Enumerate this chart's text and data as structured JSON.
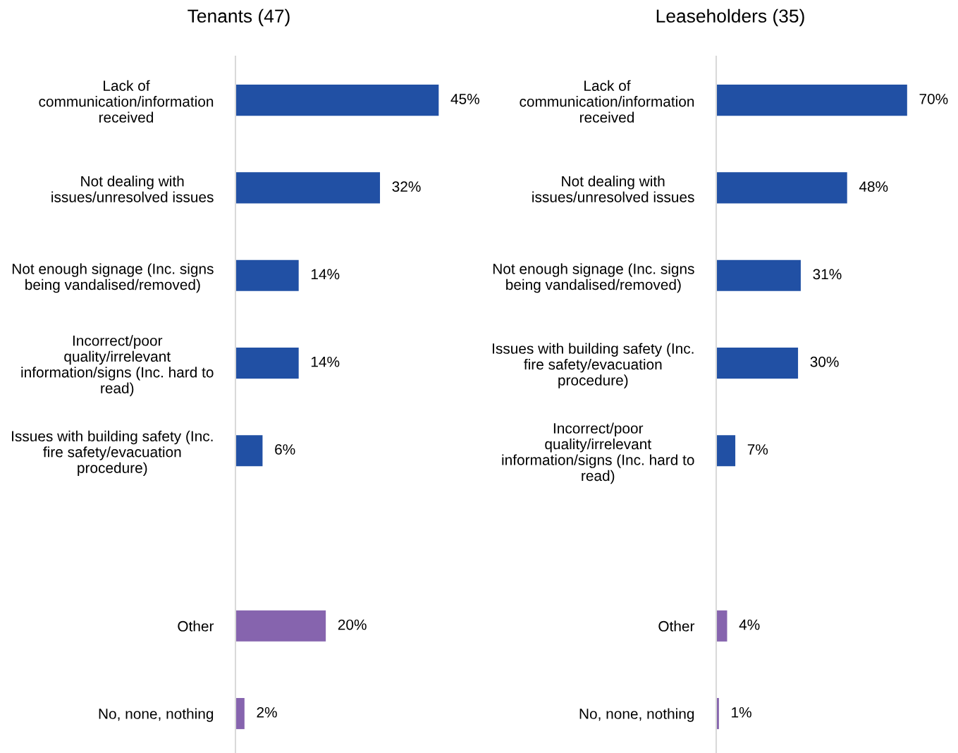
{
  "chart_data": [
    {
      "type": "bar",
      "orientation": "horizontal",
      "title": "Tenants (47)",
      "categories": [
        "Lack of\ncommunication/information\nreceived",
        "Not dealing with\nissues/unresolved issues",
        "Not enough signage (Inc. signs\nbeing vandalised/removed)",
        "Incorrect/poor\nquality/irrelevant\ninformation/signs (Inc. hard to\nread)",
        "Issues with building safety (Inc.\nfire safety/evacuation\nprocedure)",
        null,
        "Other",
        "No, none, nothing"
      ],
      "values": [
        45,
        32,
        14,
        14,
        6,
        null,
        20,
        2
      ],
      "colors": [
        "#2150a4",
        "#2150a4",
        "#2150a4",
        "#2150a4",
        "#2150a4",
        "#2150a4",
        "#8664ae",
        "#8664ae"
      ],
      "value_labels": [
        "45%",
        "32%",
        "14%",
        "14%",
        "6%",
        null,
        "20%",
        "2%"
      ],
      "grid": false,
      "legend": false,
      "tick_labels": "y"
    },
    {
      "type": "bar",
      "orientation": "horizontal",
      "title": "Leaseholders (35)",
      "categories": [
        "Lack of\ncommunication/information\nreceived",
        "Not dealing with\nissues/unresolved issues",
        "Not enough signage (Inc. signs\nbeing vandalised/removed)",
        "Issues with building safety (Inc.\nfire safety/evacuation\nprocedure)",
        "Incorrect/poor\nquality/irrelevant\ninformation/signs (Inc. hard to\nread)",
        null,
        "Other",
        "No, none, nothing"
      ],
      "values": [
        70,
        48,
        31,
        30,
        7,
        null,
        4,
        1
      ],
      "colors": [
        "#2150a4",
        "#2150a4",
        "#2150a4",
        "#2150a4",
        "#2150a4",
        "#2150a4",
        "#8664ae",
        "#8664ae"
      ],
      "value_labels": [
        "70%",
        "48%",
        "31%",
        "30%",
        "7%",
        null,
        "4%",
        "1%"
      ],
      "grid": false,
      "legend": false,
      "tick_labels": "y"
    }
  ]
}
